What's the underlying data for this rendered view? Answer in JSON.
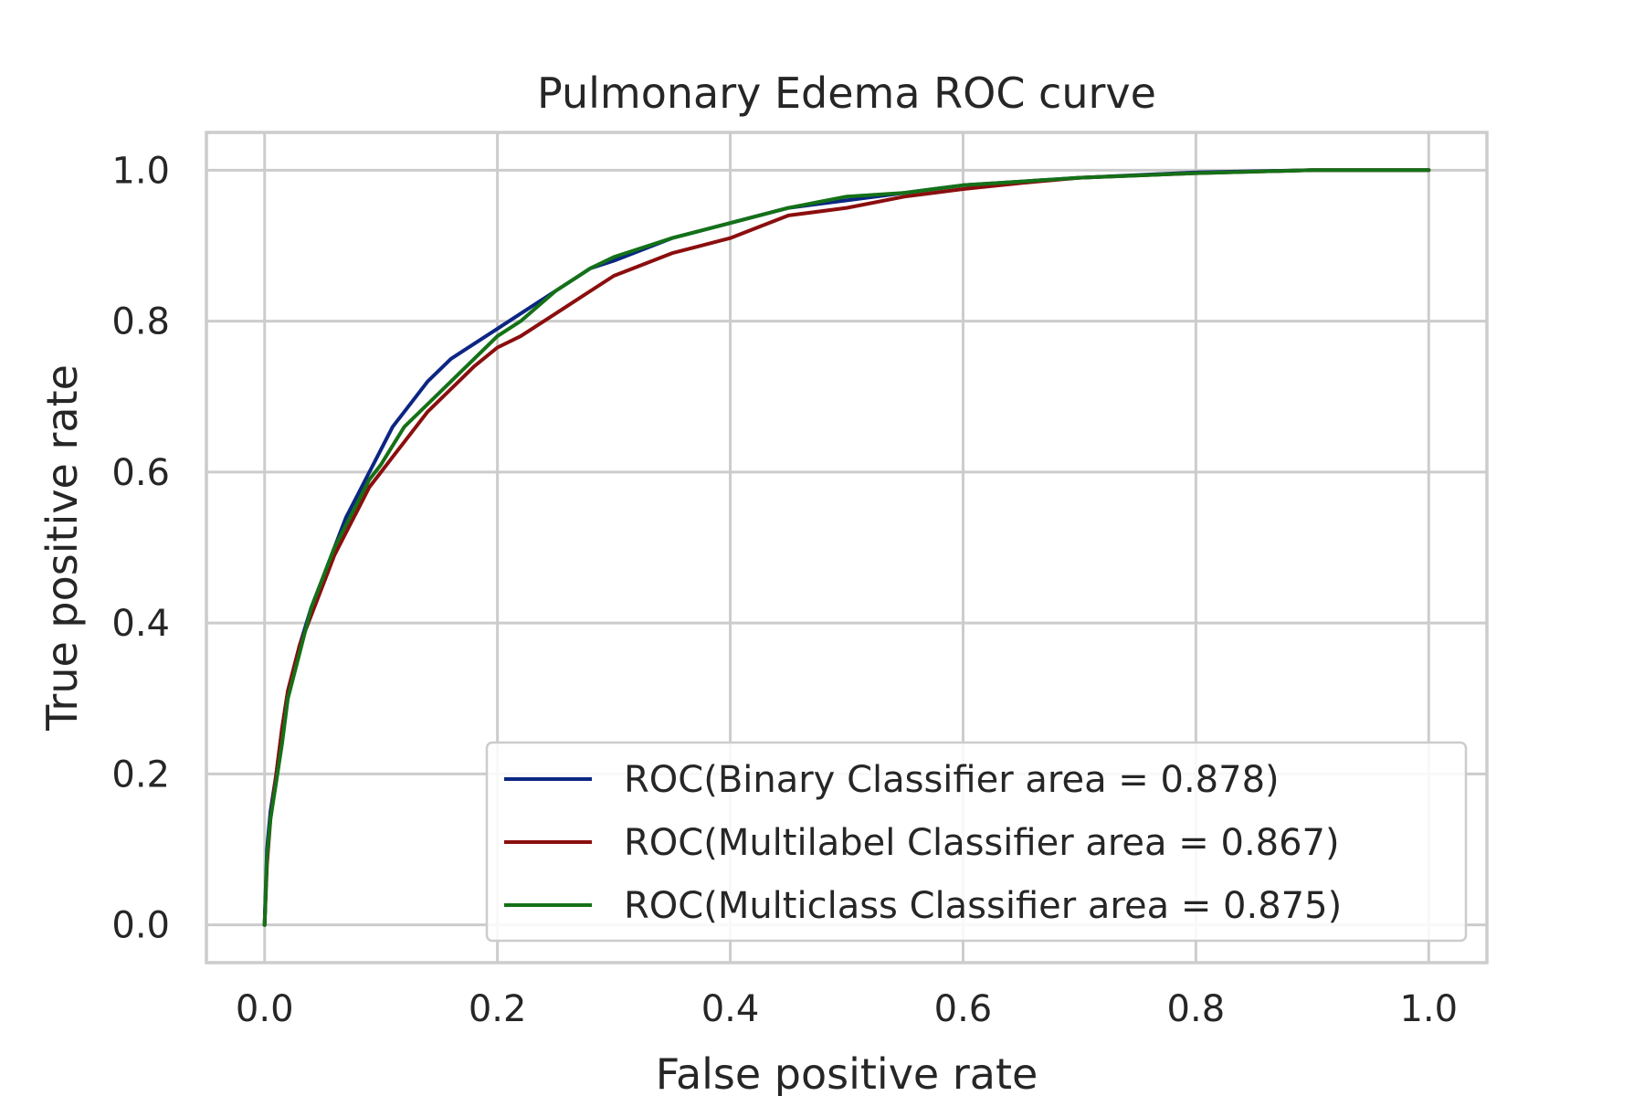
{
  "chart_data": {
    "type": "line",
    "title": "Pulmonary Edema ROC curve",
    "xlabel": "False positive rate",
    "ylabel": "True positive rate",
    "xlim": [
      -0.05,
      1.05
    ],
    "ylim": [
      -0.05,
      1.05
    ],
    "xticks": [
      "0.0",
      "0.2",
      "0.4",
      "0.6",
      "0.8",
      "1.0"
    ],
    "yticks": [
      "0.0",
      "0.2",
      "0.4",
      "0.6",
      "0.8",
      "1.0"
    ],
    "grid": true,
    "legend_position": "lower right",
    "series": [
      {
        "name": "ROC(Binary Classifier area = 0.878)",
        "color": "#0b2683",
        "x": [
          0,
          0.002,
          0.005,
          0.01,
          0.015,
          0.02,
          0.03,
          0.04,
          0.05,
          0.06,
          0.07,
          0.08,
          0.09,
          0.1,
          0.11,
          0.12,
          0.14,
          0.16,
          0.18,
          0.2,
          0.22,
          0.25,
          0.28,
          0.3,
          0.35,
          0.4,
          0.45,
          0.5,
          0.55,
          0.6,
          0.65,
          0.7,
          0.8,
          0.9,
          1.0
        ],
        "y": [
          0,
          0.1,
          0.15,
          0.2,
          0.26,
          0.31,
          0.37,
          0.42,
          0.46,
          0.5,
          0.54,
          0.57,
          0.6,
          0.63,
          0.66,
          0.68,
          0.72,
          0.75,
          0.77,
          0.79,
          0.81,
          0.84,
          0.87,
          0.88,
          0.91,
          0.93,
          0.95,
          0.96,
          0.97,
          0.98,
          0.985,
          0.99,
          0.997,
          1.0,
          1.0
        ]
      },
      {
        "name": "ROC(Multilabel Classifier area = 0.867)",
        "color": "#8b0e0e",
        "x": [
          0,
          0.002,
          0.005,
          0.01,
          0.015,
          0.02,
          0.03,
          0.04,
          0.05,
          0.06,
          0.07,
          0.08,
          0.09,
          0.1,
          0.11,
          0.12,
          0.14,
          0.16,
          0.18,
          0.2,
          0.22,
          0.25,
          0.28,
          0.3,
          0.35,
          0.4,
          0.45,
          0.5,
          0.55,
          0.6,
          0.65,
          0.7,
          0.8,
          0.9,
          1.0
        ],
        "y": [
          0,
          0.08,
          0.14,
          0.2,
          0.26,
          0.31,
          0.37,
          0.41,
          0.45,
          0.49,
          0.52,
          0.55,
          0.58,
          0.6,
          0.62,
          0.64,
          0.68,
          0.71,
          0.74,
          0.765,
          0.78,
          0.81,
          0.84,
          0.86,
          0.89,
          0.91,
          0.94,
          0.95,
          0.965,
          0.975,
          0.983,
          0.99,
          0.996,
          1.0,
          1.0
        ]
      },
      {
        "name": "ROC(Multiclass Classifier area = 0.875)",
        "color": "#147117",
        "x": [
          0,
          0.002,
          0.005,
          0.01,
          0.015,
          0.02,
          0.03,
          0.04,
          0.05,
          0.06,
          0.07,
          0.08,
          0.09,
          0.1,
          0.11,
          0.12,
          0.14,
          0.16,
          0.18,
          0.2,
          0.22,
          0.25,
          0.28,
          0.3,
          0.35,
          0.4,
          0.45,
          0.5,
          0.55,
          0.6,
          0.65,
          0.7,
          0.8,
          0.9,
          1.0
        ],
        "y": [
          0,
          0.09,
          0.14,
          0.19,
          0.24,
          0.3,
          0.36,
          0.42,
          0.46,
          0.5,
          0.53,
          0.56,
          0.59,
          0.61,
          0.635,
          0.66,
          0.69,
          0.72,
          0.75,
          0.78,
          0.8,
          0.84,
          0.87,
          0.885,
          0.91,
          0.93,
          0.95,
          0.965,
          0.97,
          0.98,
          0.985,
          0.99,
          0.996,
          1.0,
          1.0
        ]
      }
    ]
  }
}
